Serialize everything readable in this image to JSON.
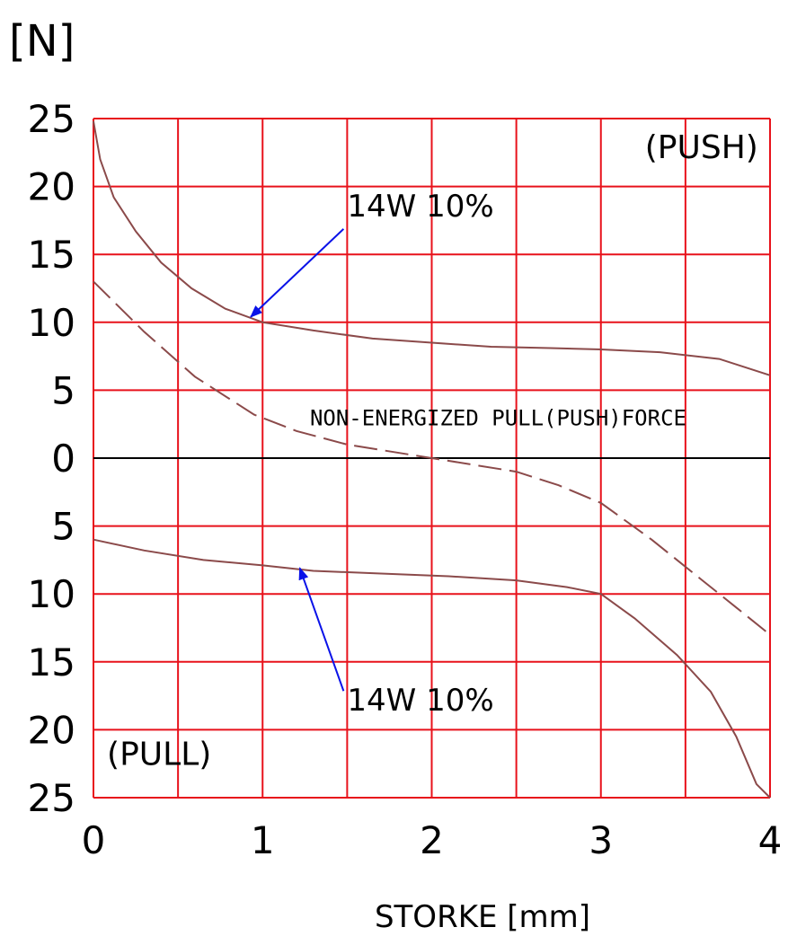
{
  "chart_data": {
    "type": "line",
    "unit_label": "[N]",
    "xlabel": "STORKE [mm]",
    "xlim": [
      0,
      4
    ],
    "ylim": [
      -25,
      25
    ],
    "x_ticks": [
      {
        "value": 0,
        "label": "0"
      },
      {
        "value": 1,
        "label": "1"
      },
      {
        "value": 2,
        "label": "2"
      },
      {
        "value": 3,
        "label": "3"
      },
      {
        "value": 4,
        "label": "4"
      }
    ],
    "y_ticks": [
      {
        "value": 25,
        "label": "25"
      },
      {
        "value": 20,
        "label": "20"
      },
      {
        "value": 15,
        "label": "15"
      },
      {
        "value": 10,
        "label": "10"
      },
      {
        "value": 5,
        "label": "5"
      },
      {
        "value": 0,
        "label": "0"
      },
      {
        "value": -5,
        "label": "5"
      },
      {
        "value": -10,
        "label": "10"
      },
      {
        "value": -15,
        "label": "15"
      },
      {
        "value": -20,
        "label": "20"
      },
      {
        "value": -25,
        "label": "25"
      }
    ],
    "grid": true,
    "grid_x_step": 0.5,
    "grid_y_step": 5,
    "colors": {
      "grid": "#e8121b",
      "curve": "#8b4a4a",
      "arrow": "#0a12e8",
      "zero_line": "#000000"
    },
    "series": [
      {
        "key": "push",
        "style": "solid",
        "x": [
          0,
          0.04,
          0.12,
          0.25,
          0.4,
          0.58,
          0.78,
          1.0,
          1.3,
          1.65,
          2.0,
          2.35,
          2.7,
          3.0,
          3.35,
          3.7,
          4.0
        ],
        "y": [
          24.8,
          22.0,
          19.2,
          16.7,
          14.4,
          12.5,
          11.0,
          10.0,
          9.4,
          8.8,
          8.5,
          8.2,
          8.1,
          8.0,
          7.8,
          7.3,
          6.1
        ]
      },
      {
        "key": "non_energized",
        "style": "dashed",
        "x": [
          0,
          0.3,
          0.6,
          0.95,
          1.2,
          1.5,
          2.0,
          2.5,
          2.75,
          3.0,
          3.3,
          3.6,
          3.8,
          4.0
        ],
        "y": [
          13.0,
          9.3,
          6.0,
          3.2,
          2.0,
          1.0,
          0.0,
          -1.0,
          -2.0,
          -3.3,
          -6.0,
          -9.0,
          -11.0,
          -13.0
        ]
      },
      {
        "key": "pull",
        "style": "solid",
        "x": [
          0,
          0.3,
          0.65,
          1.0,
          1.3,
          1.7,
          2.1,
          2.5,
          2.8,
          3.0,
          3.2,
          3.45,
          3.65,
          3.8,
          3.92,
          4.0
        ],
        "y": [
          -6.0,
          -6.8,
          -7.5,
          -7.9,
          -8.3,
          -8.5,
          -8.7,
          -9.0,
          -9.5,
          -10.0,
          -11.8,
          -14.5,
          -17.2,
          -20.5,
          -24.0,
          -25.0
        ]
      }
    ],
    "annotations": [
      {
        "key": "push_label",
        "text": "14W 10%",
        "x": 1.5,
        "y": 17.8,
        "arrow_to": [
          0.93,
          10.4
        ]
      },
      {
        "key": "pull_label",
        "text": "14W 10%",
        "x": 1.5,
        "y": -18.6,
        "arrow_to": [
          1.22,
          -8.1
        ]
      },
      {
        "key": "non_energized_label",
        "text": "NON-ENERGIZED PULL(PUSH)FORCE",
        "x": 1.28,
        "y": 2.4
      },
      {
        "key": "push_region",
        "text": "(PUSH)",
        "x": 3.93,
        "y": 22.1
      },
      {
        "key": "pull_region",
        "text": "(PULL)",
        "x": 0.08,
        "y": -22.6
      }
    ]
  }
}
